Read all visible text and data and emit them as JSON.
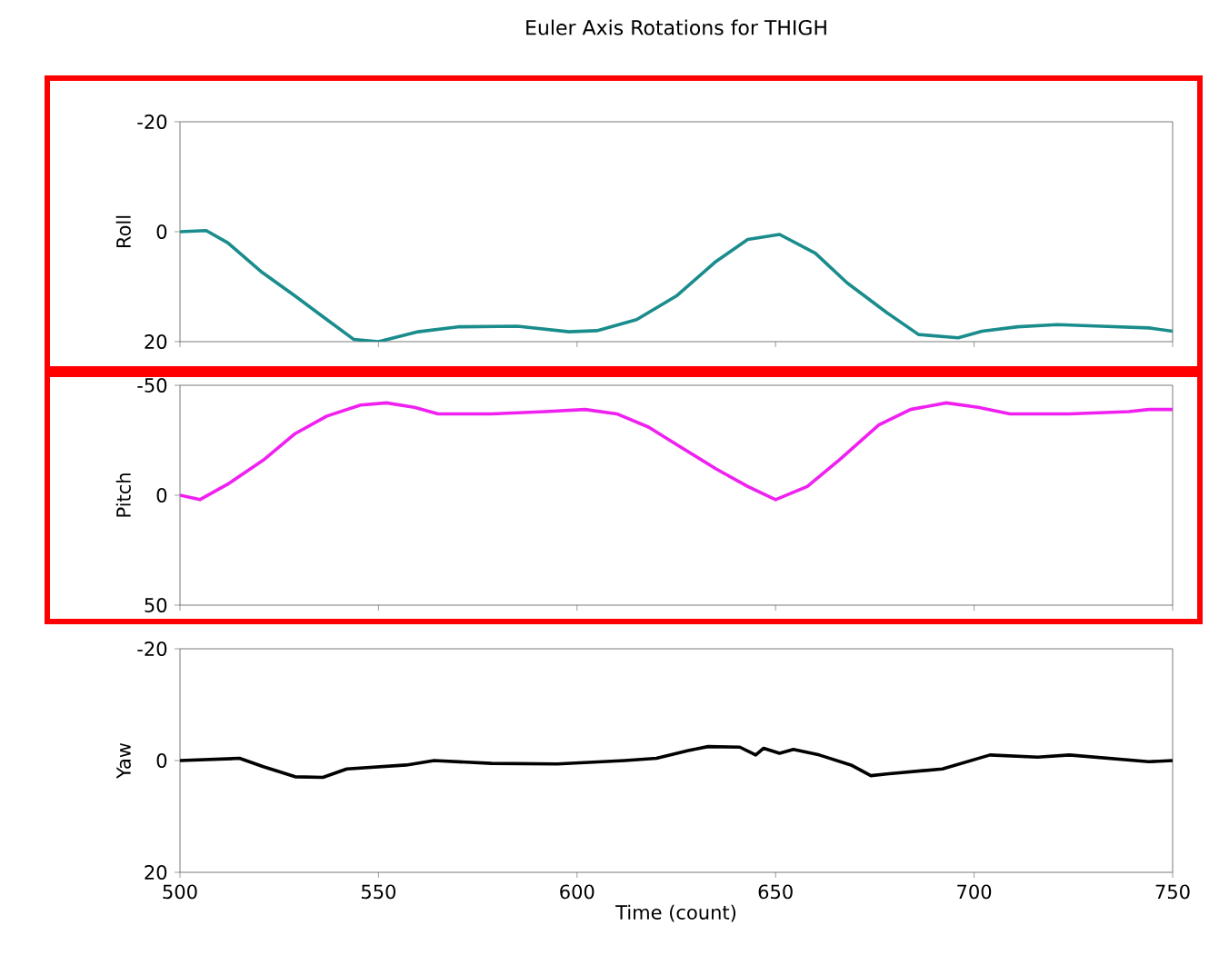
{
  "chart_data": [
    {
      "type": "line",
      "title": "Euler Axis Rotations for THIGH",
      "ylabel": "Roll",
      "color": "#1a8c8c",
      "tick_labels": "y",
      "x": [
        500,
        506.6,
        512,
        520.7,
        529,
        537,
        543.8,
        550,
        560,
        570,
        585,
        598,
        605,
        615,
        625,
        635,
        643,
        651,
        660,
        668,
        678,
        686,
        696,
        702,
        711,
        721,
        732,
        744,
        750
      ],
      "values": [
        0,
        -0.2,
        2,
        7.4,
        11.7,
        16,
        19.6,
        20,
        18.2,
        17.3,
        17.2,
        18.2,
        18,
        16,
        11.7,
        5.4,
        1.4,
        0.5,
        3.9,
        9.3,
        14.7,
        18.7,
        19.3,
        18.1,
        17.3,
        16.9,
        17.2,
        17.5,
        18.1
      ],
      "xlim": [
        500,
        750
      ],
      "xticks": [
        500,
        550,
        600,
        650,
        700,
        750
      ],
      "ylim": [
        20,
        -20
      ],
      "yticks": [
        -20,
        0,
        20
      ]
    },
    {
      "type": "line",
      "ylabel": "Pitch",
      "color": "#f020f0",
      "tick_labels": "y",
      "x": [
        500,
        505,
        512,
        521,
        529,
        537,
        545.5,
        552,
        559,
        565,
        578.5,
        592,
        602,
        610,
        618,
        626,
        635,
        643,
        650,
        658,
        666,
        676,
        684,
        693,
        701,
        709,
        724,
        739,
        744,
        750
      ],
      "values": [
        0,
        2,
        -5,
        -16,
        -28,
        -36,
        -41,
        -42,
        -40,
        -37,
        -37,
        -38,
        -39,
        -37,
        -31,
        -22,
        -12,
        -4,
        2,
        -4,
        -16,
        -32,
        -39,
        -42,
        -40,
        -37,
        -37,
        -38,
        -39,
        -39
      ],
      "xlim": [
        500,
        750
      ],
      "xticks": [
        500,
        550,
        600,
        650,
        700,
        750
      ],
      "ylim": [
        50,
        -50
      ],
      "yticks": [
        -50,
        0,
        50
      ]
    },
    {
      "type": "line",
      "ylabel": "Yaw",
      "xlabel": "Time (count)",
      "color": "#000000",
      "x": [
        500,
        515,
        521,
        529,
        536,
        542,
        557,
        564,
        578.5,
        595,
        612,
        620,
        628,
        633,
        641,
        645,
        647,
        651,
        654.5,
        661,
        669,
        674,
        678,
        692,
        704,
        716,
        724,
        744,
        750
      ],
      "values": [
        0,
        -0.4,
        1.1,
        2.9,
        3,
        1.5,
        0.8,
        0,
        0.5,
        0.6,
        0,
        -0.4,
        -1.8,
        -2.5,
        -2.4,
        -1,
        -2.2,
        -1.3,
        -2,
        -1,
        0.8,
        2.7,
        2.4,
        1.5,
        -1,
        -0.6,
        -1,
        0.2,
        0
      ],
      "xlim": [
        500,
        750
      ],
      "xticks": [
        500,
        550,
        600,
        650,
        700,
        750
      ],
      "ylim": [
        20,
        -20
      ],
      "yticks": [
        -20,
        0,
        20
      ]
    }
  ]
}
